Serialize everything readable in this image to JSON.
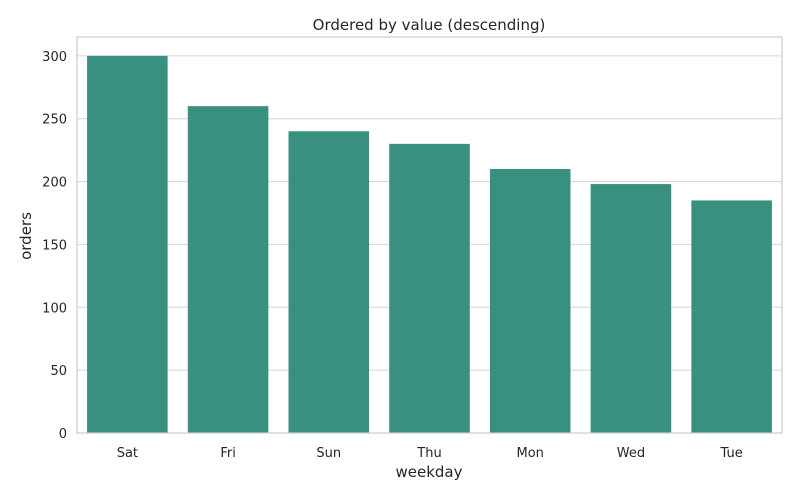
{
  "chart_data": {
    "type": "bar",
    "title": "Ordered by value (descending)",
    "xlabel": "weekday",
    "ylabel": "orders",
    "categories": [
      "Sat",
      "Fri",
      "Sun",
      "Thu",
      "Mon",
      "Wed",
      "Tue"
    ],
    "values": [
      300,
      260,
      240,
      230,
      210,
      198,
      185
    ],
    "ylim": [
      0,
      315
    ],
    "yticks": [
      "0",
      "50",
      "100",
      "150",
      "200",
      "250",
      "300"
    ],
    "grid": true,
    "bar_color": "#3a9080",
    "legend": "none"
  }
}
